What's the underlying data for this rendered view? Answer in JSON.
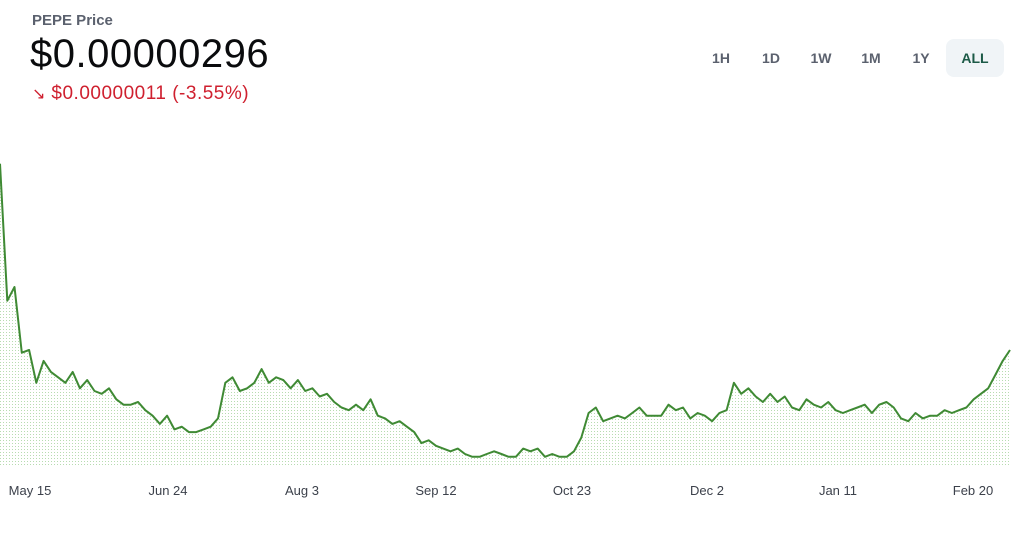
{
  "header": {
    "title": "PEPE Price",
    "price": "$0.00000296",
    "change_arrow": "↘",
    "change": "$0.00000011 (-3.55%)",
    "change_color": "#cf202f"
  },
  "ranges": [
    {
      "label": "1H",
      "active": false
    },
    {
      "label": "1D",
      "active": false
    },
    {
      "label": "1W",
      "active": false
    },
    {
      "label": "1M",
      "active": false
    },
    {
      "label": "1Y",
      "active": false
    },
    {
      "label": "ALL",
      "active": true
    }
  ],
  "chart_data": {
    "type": "line",
    "title": "",
    "xlabel": "",
    "ylabel": "",
    "x_tick_labels": [
      "May 15",
      "Jun 24",
      "Aug 3",
      "Sep 12",
      "Oct 23",
      "Dec 2",
      "Jan 11",
      "Feb 20"
    ],
    "line_color": "#3f8a34",
    "fill": "dotted",
    "series": [
      {
        "values": [
          1.4,
          0.9,
          0.95,
          0.71,
          0.72,
          0.6,
          0.68,
          0.64,
          0.62,
          0.6,
          0.64,
          0.58,
          0.61,
          0.57,
          0.56,
          0.58,
          0.54,
          0.52,
          0.52,
          0.53,
          0.5,
          0.48,
          0.45,
          0.48,
          0.43,
          0.44,
          0.42,
          0.42,
          0.43,
          0.44,
          0.47,
          0.6,
          0.62,
          0.57,
          0.58,
          0.6,
          0.65,
          0.6,
          0.62,
          0.61,
          0.58,
          0.61,
          0.57,
          0.58,
          0.55,
          0.56,
          0.53,
          0.51,
          0.5,
          0.52,
          0.5,
          0.54,
          0.48,
          0.47,
          0.45,
          0.46,
          0.44,
          0.42,
          0.38,
          0.39,
          0.37,
          0.36,
          0.35,
          0.36,
          0.34,
          0.33,
          0.33,
          0.34,
          0.35,
          0.34,
          0.33,
          0.33,
          0.36,
          0.35,
          0.36,
          0.33,
          0.34,
          0.33,
          0.33,
          0.35,
          0.4,
          0.49,
          0.51,
          0.46,
          0.47,
          0.48,
          0.47,
          0.49,
          0.51,
          0.48,
          0.48,
          0.48,
          0.52,
          0.5,
          0.51,
          0.47,
          0.49,
          0.48,
          0.46,
          0.49,
          0.5,
          0.6,
          0.56,
          0.58,
          0.55,
          0.53,
          0.56,
          0.53,
          0.55,
          0.51,
          0.5,
          0.54,
          0.52,
          0.51,
          0.53,
          0.5,
          0.49,
          0.5,
          0.51,
          0.52,
          0.49,
          0.52,
          0.53,
          0.51,
          0.47,
          0.46,
          0.49,
          0.47,
          0.48,
          0.48,
          0.5,
          0.49,
          0.5,
          0.51,
          0.54,
          0.56,
          0.58,
          0.63,
          0.68,
          0.72
        ]
      }
    ],
    "grid": false,
    "legend": "none"
  }
}
